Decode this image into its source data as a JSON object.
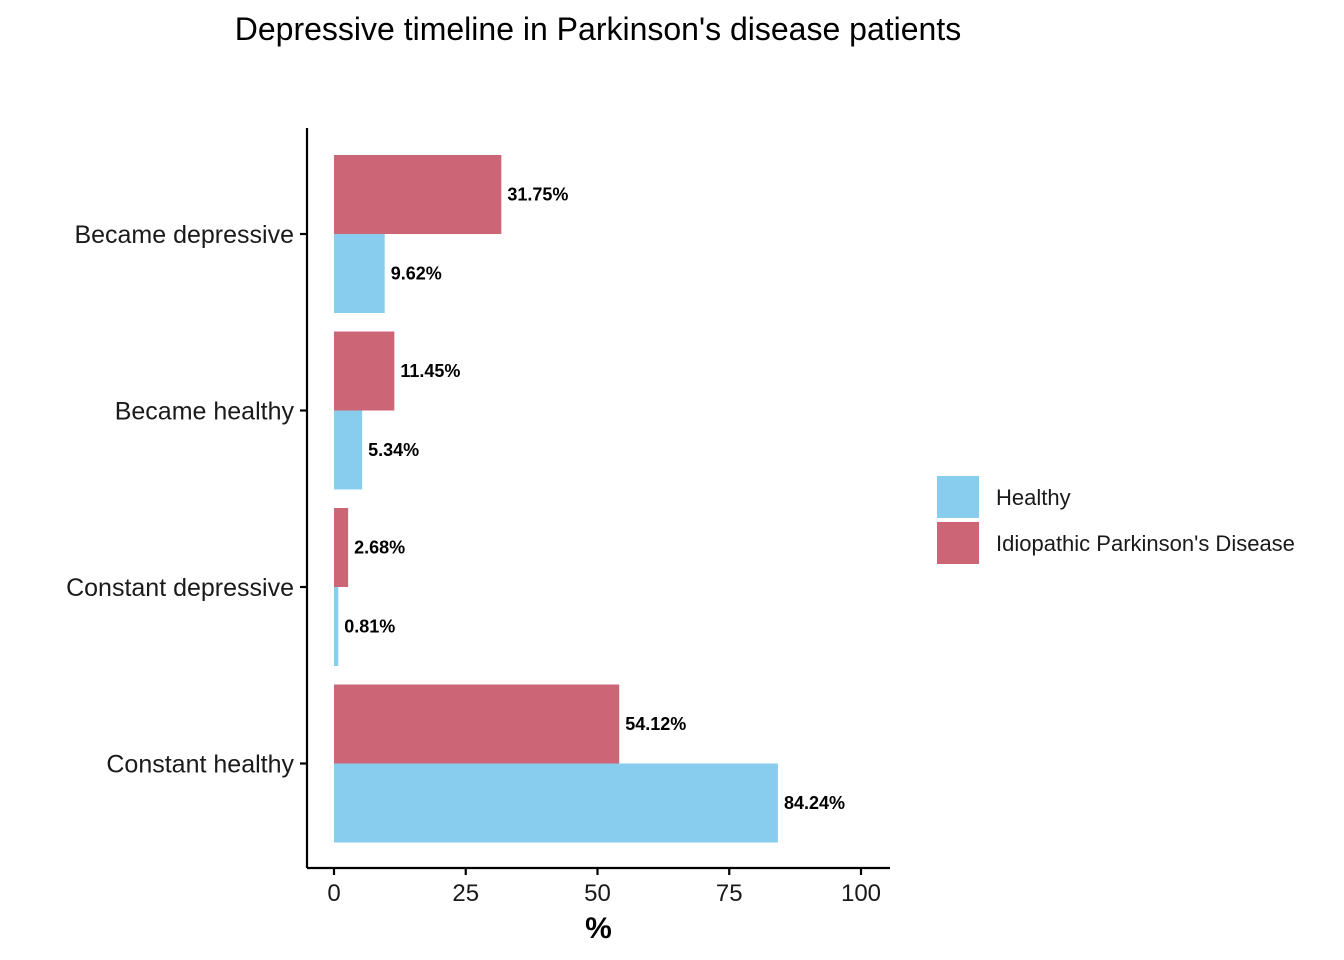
{
  "chart_data": {
    "type": "bar",
    "orientation": "horizontal",
    "title": "Depressive timeline in Parkinson's disease patients",
    "xlabel": "%",
    "ylabel": "",
    "categories": [
      "Became depressive",
      "Became healthy",
      "Constant depressive",
      "Constant healthy"
    ],
    "series": [
      {
        "name": "Healthy",
        "color": "#89CDEE",
        "values": [
          9.62,
          5.34,
          0.81,
          84.24
        ],
        "labels": [
          "9.62%",
          "5.34%",
          "0.81%",
          "84.24%"
        ]
      },
      {
        "name": "Idiopathic Parkinson's Disease",
        "color": "#CC6677",
        "values": [
          31.75,
          11.45,
          2.68,
          54.12
        ],
        "labels": [
          "31.75%",
          "11.45%",
          "2.68%",
          "54.12%"
        ]
      }
    ],
    "xlim": [
      0,
      100
    ],
    "xticks": [
      0,
      25,
      50,
      75,
      100
    ],
    "xtick_labels": [
      "0",
      "25",
      "50",
      "75",
      "100"
    ],
    "grid": false,
    "legend_position": "right"
  }
}
